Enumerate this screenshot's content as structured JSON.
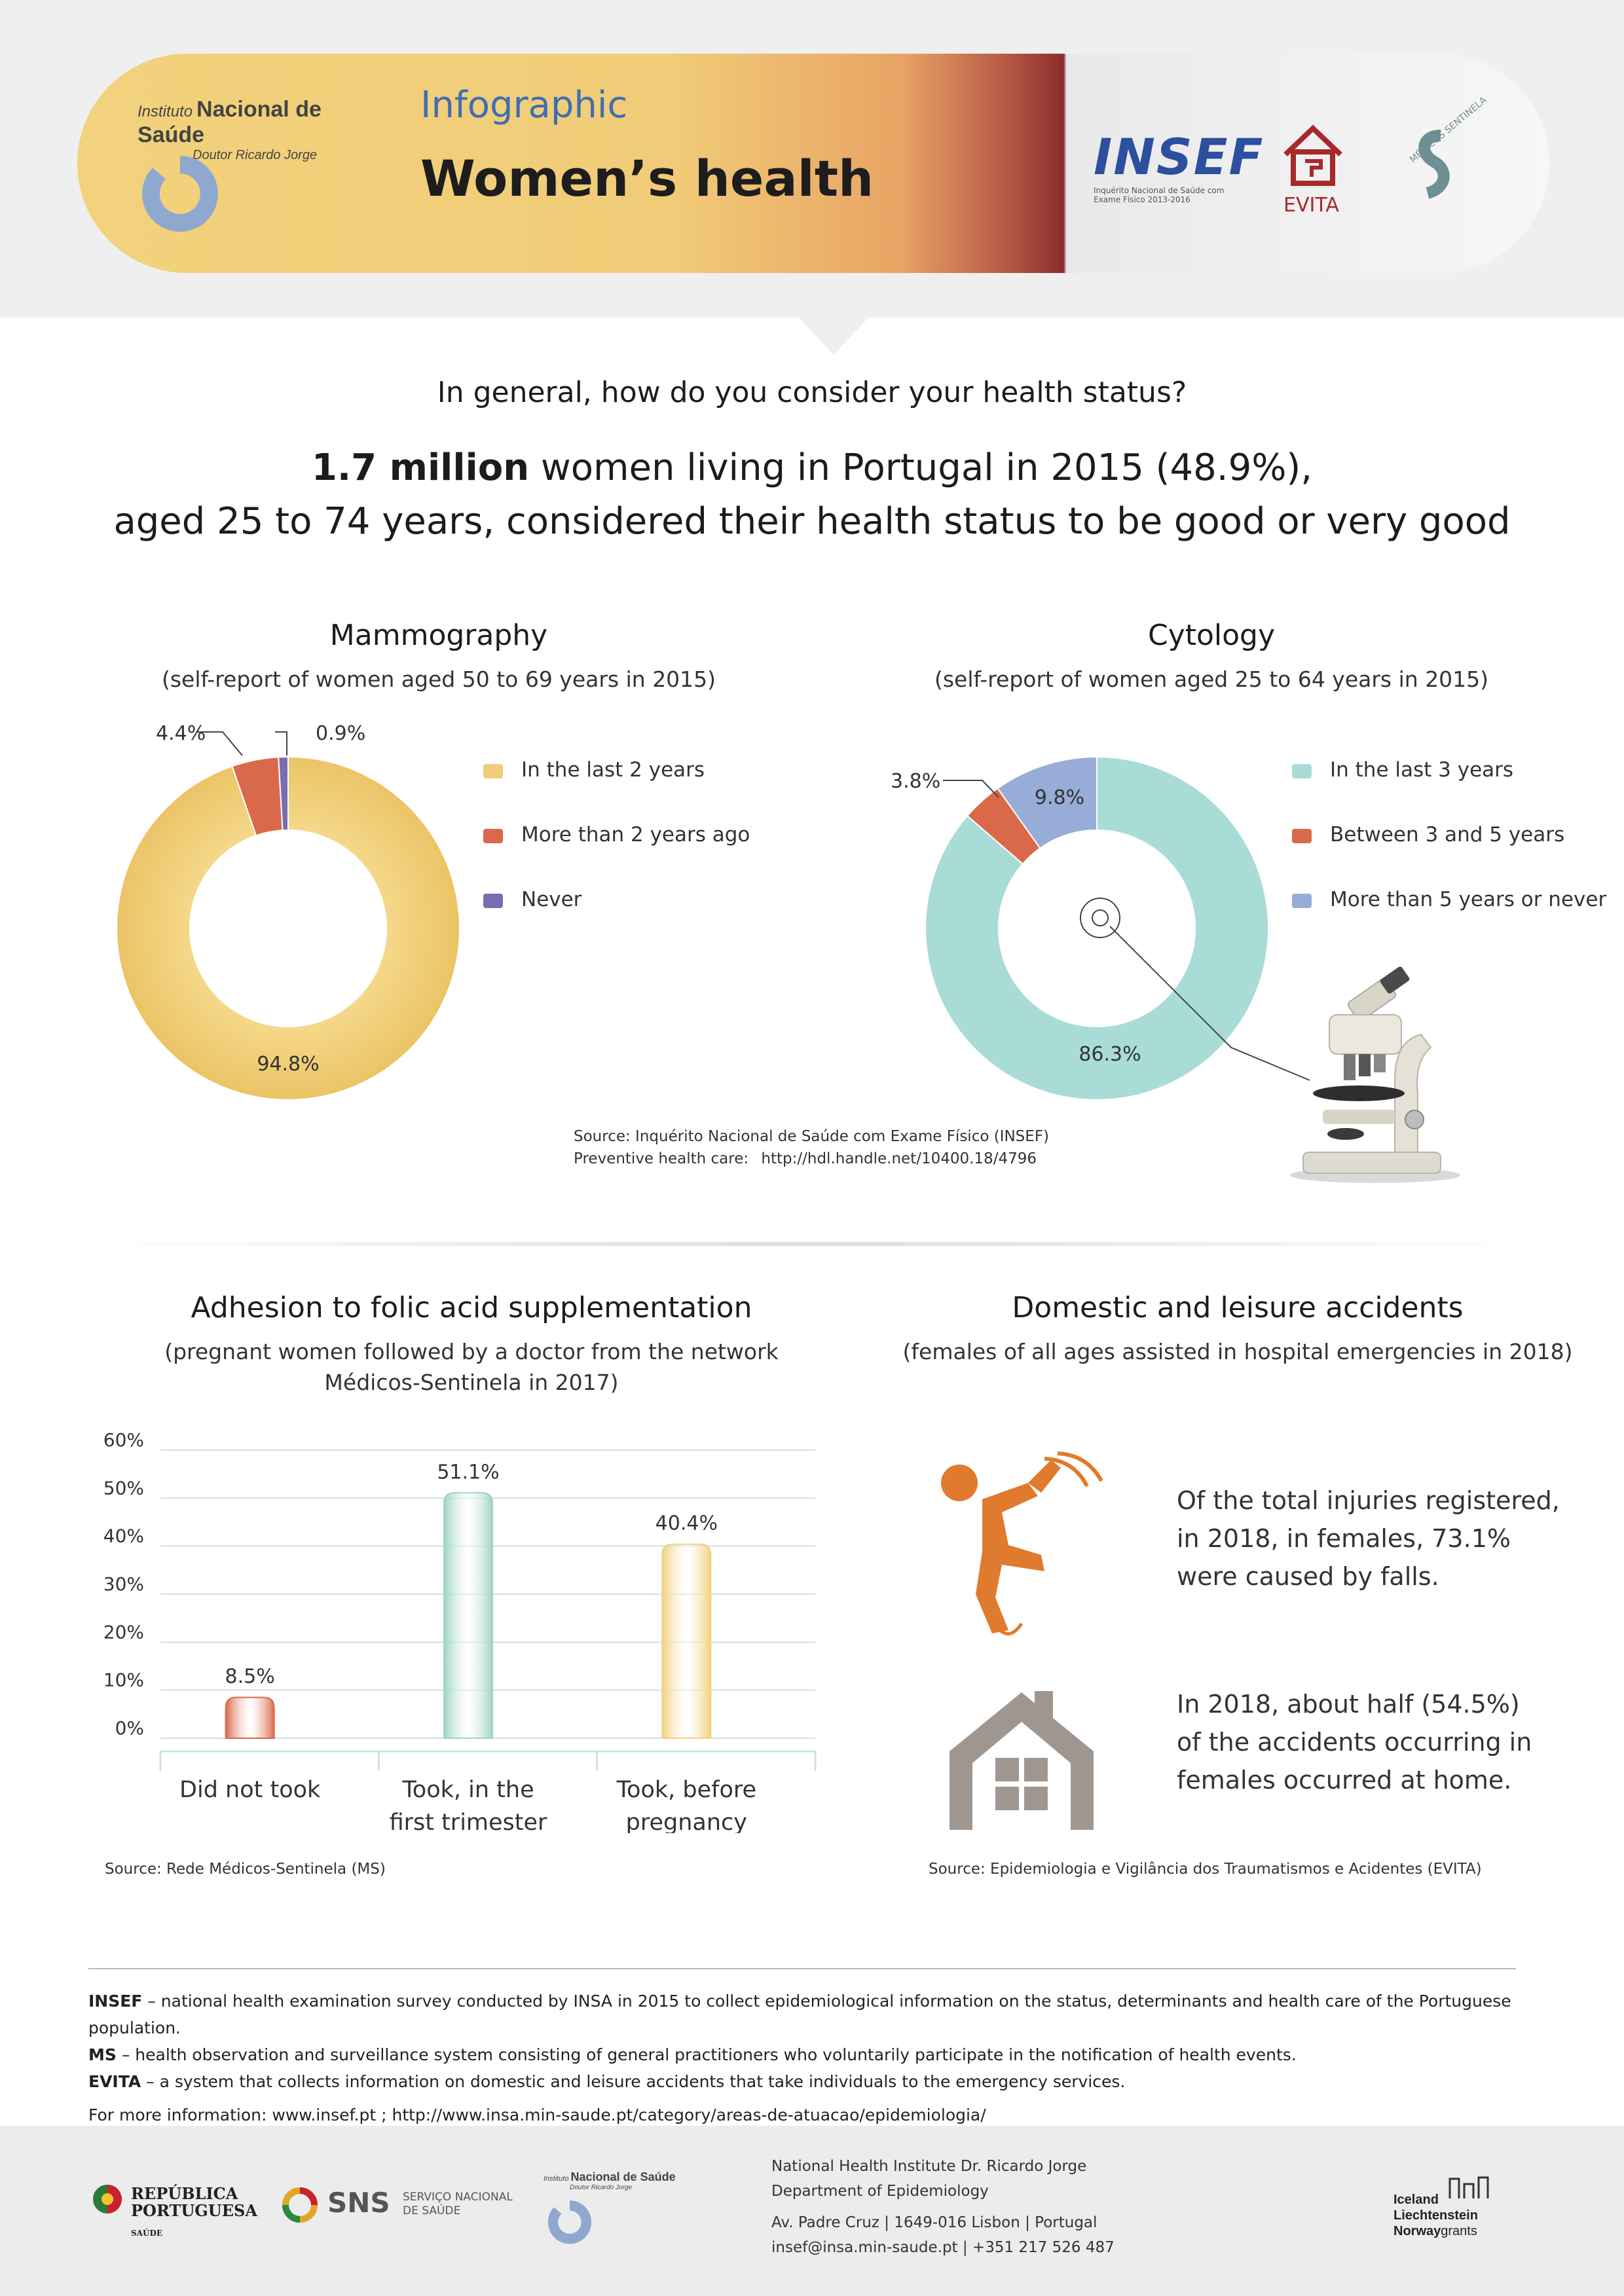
{
  "header": {
    "insa_logo": {
      "line1": "Instituto",
      "line2": "Nacional de Saúde",
      "line3": "Doutor Ricardo Jorge"
    },
    "kicker": "Infographic",
    "title": "Women’s health",
    "partner_logos": {
      "insef": {
        "name": "INSEF",
        "caption1": "Inquérito Nacional de Saúde com",
        "caption2": "Exame Físico 2013-2016"
      },
      "evita": {
        "name": "EVITA"
      },
      "ms": {
        "name": "MÉDICOS SENTINELA"
      }
    }
  },
  "intro": {
    "question": "In general, how do you consider your health status?",
    "highlight_bold": "1.7 million",
    "highlight_rest": " women living in Portugal in 2015 (48.9%),",
    "highlight_line2": "aged 25 to 74 years, considered their health status to be good or very good"
  },
  "chart_data": [
    {
      "id": "mammography",
      "type": "pie",
      "title": "Mammography",
      "subtitle": "(self-report of women aged 50 to 69 years in 2015)",
      "categories": [
        "In the last 2 years",
        "More than 2 years ago",
        "Never"
      ],
      "values": [
        94.8,
        4.4,
        0.9
      ],
      "labels": [
        "94.8%",
        "4.4%",
        "0.9%"
      ],
      "colors": [
        "#f0cd7a",
        "#d9694a",
        "#7b6bb0"
      ],
      "legend_position": "right"
    },
    {
      "id": "cytology",
      "type": "pie",
      "title": "Cytology",
      "subtitle": "(self-report of women aged 25 to 64 years in 2015)",
      "categories": [
        "In the last 3 years",
        "Between 3 and 5 years",
        "More than 5 years or never"
      ],
      "values": [
        86.3,
        3.8,
        9.8
      ],
      "labels": [
        "86.3%",
        "3.8%",
        "9.8%"
      ],
      "colors": [
        "#a9dcd6",
        "#d9694a",
        "#98acd8"
      ],
      "legend_position": "right"
    },
    {
      "id": "folic",
      "type": "bar",
      "title": "Adhesion to folic acid supplementation",
      "subtitle_line1": "(pregnant women followed by a doctor from the network",
      "subtitle_line2": "Médicos-Sentinela in 2017)",
      "categories": [
        [
          "Did not took"
        ],
        [
          "Took, in the",
          "first trimester"
        ],
        [
          "Took, before",
          "pregnancy"
        ]
      ],
      "values": [
        8.5,
        51.1,
        40.4
      ],
      "labels": [
        "8.5%",
        "51.1%",
        "40.4%"
      ],
      "colors": [
        "#d9694a",
        "#9fd3c4",
        "#f2d07e"
      ],
      "ylim": [
        0,
        60
      ],
      "yticks": [
        "0%",
        "10%",
        "20%",
        "30%",
        "40%",
        "50%",
        "60%"
      ],
      "grid": true
    }
  ],
  "sources": {
    "insef_line1": "Source: Inquérito Nacional de Saúde com Exame Físico (INSEF)",
    "insef_line2_label": "Preventive health care:",
    "insef_line2_url": "http://hdl.handle.net/10400.18/4796",
    "ms": "Source: Rede Médicos-Sentinela (MS)",
    "evita": "Source: Epidemiologia e Vigilância dos Traumatismos e Acidentes (EVITA)"
  },
  "accidents": {
    "title": "Domestic and leisure accidents",
    "subtitle": "(females of all ages assisted in hospital emergencies in 2018)",
    "falls": [
      "Of the total injuries registered,",
      "in 2018, in females, 73.1%",
      "were caused by falls."
    ],
    "home": [
      "In 2018, about half (54.5%)",
      "of the accidents occurring in",
      "females occurred at home."
    ],
    "falls_icon": "falling-person-icon",
    "home_icon": "house-icon",
    "icon_colors": {
      "falls": "#e07a2e",
      "home": "#a09690"
    }
  },
  "glossary": {
    "insef_term": "INSEF",
    "insef_text": " – national health examination survey conducted by INSA in 2015 to collect epidemiological information on the status, determinants and health care of the Portuguese population.",
    "ms_term": "MS",
    "ms_text": " – health observation and surveillance system consisting of general practitioners who voluntarily participate in the notification of health events.",
    "evita_term": "EVITA",
    "evita_text": " – a system that collects information on domestic and leisure accidents that take individuals to the emergency services.",
    "more_info": "For more information: www.insef.pt ; http://www.insa.min-saude.pt/category/areas-de-atuacao/epidemiologia/"
  },
  "footer": {
    "republica": [
      "REPÚBLICA",
      "PORTUGUESA"
    ],
    "saude": "SAÚDE",
    "sns": "SNS",
    "sns_sub": [
      "SERVIÇO NACIONAL",
      "DE SAÚDE"
    ],
    "insa": {
      "line1": "Instituto",
      "line2": "Nacional de Saúde",
      "line3": "Doutor Ricardo Jorge"
    },
    "address": [
      "National Health Institute Dr. Ricardo Jorge",
      "Department of Epidemiology",
      "Av. Padre Cruz  |  1649-016  Lisbon  |  Portugal",
      "insef@insa.min-saude.pt  |  +351 217 526 487"
    ],
    "grants": [
      "Iceland",
      "Liechtenstein",
      "Norway",
      "grants"
    ]
  }
}
